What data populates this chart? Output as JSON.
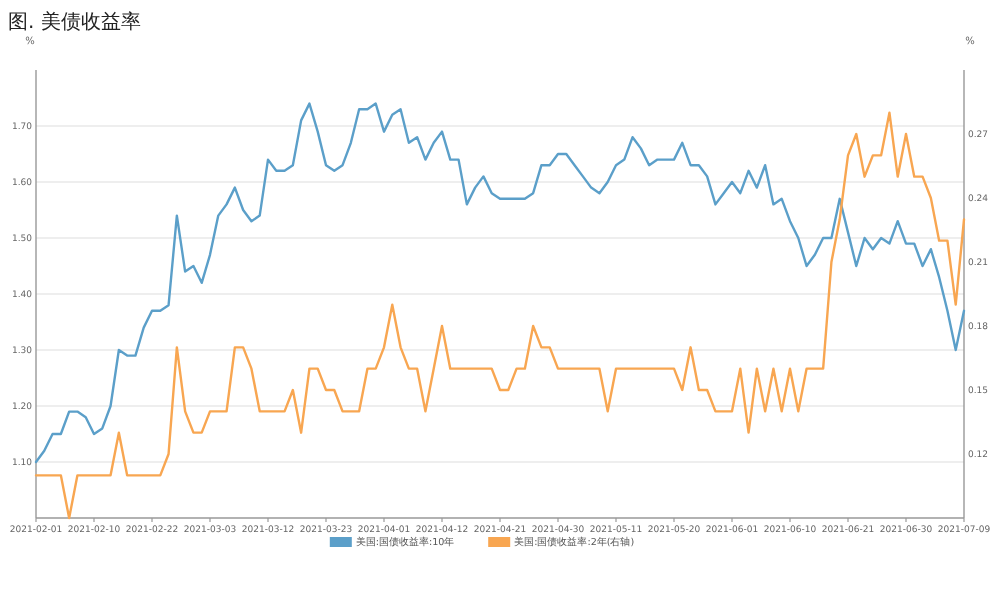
{
  "chart_data": {
    "type": "line",
    "title": "图. 美债收益率",
    "ylabel": "%",
    "y2label": "%",
    "categories": [
      "2021-02-01",
      null,
      null,
      null,
      null,
      null,
      null,
      "2021-02-10",
      null,
      null,
      null,
      null,
      null,
      null,
      "2021-02-22",
      null,
      null,
      null,
      null,
      null,
      null,
      "2021-03-03",
      null,
      null,
      null,
      null,
      null,
      null,
      "2021-03-12",
      null,
      null,
      null,
      null,
      null,
      null,
      "2021-03-23",
      null,
      null,
      null,
      null,
      null,
      null,
      "2021-04-01",
      null,
      null,
      null,
      null,
      null,
      null,
      "2021-04-12",
      null,
      null,
      null,
      null,
      null,
      null,
      "2021-04-21",
      null,
      null,
      null,
      null,
      null,
      null,
      "2021-04-30",
      null,
      null,
      null,
      null,
      null,
      null,
      "2021-05-11",
      null,
      null,
      null,
      null,
      null,
      null,
      "2021-05-20",
      null,
      null,
      null,
      null,
      null,
      null,
      "2021-06-01",
      null,
      null,
      null,
      null,
      null,
      null,
      "2021-06-10",
      null,
      null,
      null,
      null,
      null,
      null,
      "2021-06-21",
      null,
      null,
      null,
      null,
      null,
      null,
      "2021-06-30",
      null,
      null,
      null,
      null,
      null,
      null,
      "2021-07-09"
    ],
    "series": [
      {
        "name": "美国:国债收益率:10年",
        "color": "#5b9fc9",
        "values": [
          1.1,
          1.12,
          1.15,
          1.15,
          1.19,
          1.19,
          1.18,
          1.15,
          1.16,
          1.2,
          1.3,
          1.29,
          1.29,
          1.34,
          1.37,
          1.37,
          1.38,
          1.54,
          1.44,
          1.45,
          1.42,
          1.47,
          1.54,
          1.56,
          1.59,
          1.55,
          1.53,
          1.54,
          1.64,
          1.62,
          1.62,
          1.63,
          1.71,
          1.74,
          1.69,
          1.63,
          1.62,
          1.63,
          1.67,
          1.73,
          1.73,
          1.74,
          1.69,
          1.72,
          1.73,
          1.67,
          1.68,
          1.64,
          1.67,
          1.69,
          1.64,
          1.64,
          1.56,
          1.59,
          1.61,
          1.58,
          1.57,
          1.57,
          1.57,
          1.57,
          1.58,
          1.63,
          1.63,
          1.65,
          1.65,
          1.63,
          1.61,
          1.59,
          1.58,
          1.6,
          1.63,
          1.64,
          1.68,
          1.66,
          1.63,
          1.64,
          1.64,
          1.64,
          1.67,
          1.63,
          1.63,
          1.61,
          1.56,
          1.58,
          1.6,
          1.58,
          1.62,
          1.59,
          1.63,
          1.56,
          1.57,
          1.53,
          1.5,
          1.45,
          1.47,
          1.5,
          1.5,
          1.57,
          1.51,
          1.45,
          1.5,
          1.48,
          1.5,
          1.49,
          1.53,
          1.49,
          1.49,
          1.45,
          1.48,
          1.43,
          1.37,
          1.3,
          1.37
        ]
      },
      {
        "name": "美国:国债收益率:2年(右轴)",
        "color": "#f8a651",
        "axis": "y2",
        "values": [
          0.11,
          0.11,
          0.11,
          0.11,
          0.09,
          0.11,
          0.11,
          0.11,
          0.11,
          0.11,
          0.13,
          0.11,
          0.11,
          0.11,
          0.11,
          0.11,
          0.12,
          0.17,
          0.14,
          0.13,
          0.13,
          0.14,
          0.14,
          0.14,
          0.17,
          0.17,
          0.16,
          0.14,
          0.14,
          0.14,
          0.14,
          0.15,
          0.13,
          0.16,
          0.16,
          0.15,
          0.15,
          0.14,
          0.14,
          0.14,
          0.16,
          0.16,
          0.17,
          0.19,
          0.17,
          0.16,
          0.16,
          0.14,
          0.16,
          0.18,
          0.16,
          0.16,
          0.16,
          0.16,
          0.16,
          0.16,
          0.15,
          0.15,
          0.16,
          0.16,
          0.18,
          0.17,
          0.17,
          0.16,
          0.16,
          0.16,
          0.16,
          0.16,
          0.16,
          0.14,
          0.16,
          0.16,
          0.16,
          0.16,
          0.16,
          0.16,
          0.16,
          0.16,
          0.15,
          0.17,
          0.15,
          0.15,
          0.14,
          0.14,
          0.14,
          0.16,
          0.13,
          0.16,
          0.14,
          0.16,
          0.14,
          0.16,
          0.14,
          0.16,
          0.16,
          0.16,
          0.21,
          0.23,
          0.26,
          0.27,
          0.25,
          0.26,
          0.26,
          0.28,
          0.25,
          0.27,
          0.25,
          0.25,
          0.24,
          0.22,
          0.22,
          0.19,
          0.23
        ]
      }
    ],
    "ylim": [
      1.0,
      1.8
    ],
    "yticks": [
      {
        "value": 1.1,
        "label": "1.10"
      },
      {
        "value": 1.2,
        "label": "1.20"
      },
      {
        "value": 1.3,
        "label": "1.30"
      },
      {
        "value": 1.4,
        "label": "1.40"
      },
      {
        "value": 1.5,
        "label": "1.50"
      },
      {
        "value": 1.6,
        "label": "1.60"
      },
      {
        "value": 1.7,
        "label": "1.70"
      }
    ],
    "y2lim": [
      0.09,
      0.3
    ],
    "y2ticks": [
      0.12,
      0.15,
      0.18,
      0.21,
      0.24,
      0.27
    ],
    "grid": "y",
    "legend": "bottom",
    "marker": "none",
    "line_style": "solid"
  }
}
